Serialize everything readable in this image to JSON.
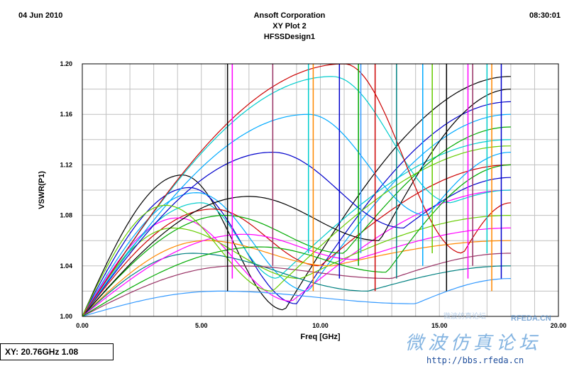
{
  "header": {
    "date": "04 Jun 2010",
    "time": "08:30:01",
    "company": "Ansoft Corporation",
    "plot_name": "XY Plot 2",
    "design": "HFSSDesign1"
  },
  "readout": "XY: 20.76GHz 1.08",
  "watermark": {
    "cn_top": "微波仿真论坛",
    "title": "微波仿真论坛",
    "logo": "RFEDA.CN",
    "url": "http://bbs.rfeda.cn"
  },
  "colors": {
    "series": [
      "#000000",
      "#0000cc",
      "#00aaff",
      "#00cccc",
      "#cc0000",
      "#ff00ff",
      "#00aa00",
      "#66cc00",
      "#ff8800",
      "#008080",
      "#993366",
      "#3399ff"
    ],
    "grid": "#c0c0c0"
  },
  "chart_data": {
    "type": "line",
    "title": "",
    "xlabel": "Freq [GHz]",
    "ylabel": "VSWR(P1)",
    "xlim": [
      0,
      20
    ],
    "ylim": [
      1.0,
      1.2
    ],
    "grid": true,
    "x_ticks": [
      "0.00",
      "5.00",
      "10.00",
      "15.00",
      "20.00"
    ],
    "y_ticks": [
      "1.00",
      "1.04",
      "1.08",
      "1.12",
      "1.16",
      "1.20"
    ],
    "x_range_data": [
      0,
      18
    ],
    "series_shape": "many parametric sweep curves starting at VSWR 1.00 at 0 GHz",
    "series": [
      {
        "peak_x": 4.2,
        "peak_y": 1.112,
        "dip_x": 8.5,
        "dip_y": 1.005,
        "end_y": 1.19
      },
      {
        "peak_x": 4.5,
        "peak_y": 1.102,
        "dip_x": 9.0,
        "dip_y": 1.01,
        "end_y": 1.17
      },
      {
        "peak_x": 4.8,
        "peak_y": 1.098,
        "dip_x": 9.5,
        "dip_y": 1.02,
        "end_y": 1.16
      },
      {
        "peak_x": 5.0,
        "peak_y": 1.09,
        "dip_x": 8.2,
        "dip_y": 1.03,
        "end_y": 1.14
      },
      {
        "peak_x": 5.5,
        "peak_y": 1.085,
        "dip_x": 10.0,
        "dip_y": 1.04,
        "end_y": 1.12
      },
      {
        "peak_x": 4.0,
        "peak_y": 1.078,
        "dip_x": 8.8,
        "dip_y": 1.012,
        "end_y": 1.1
      },
      {
        "peak_x": 6.0,
        "peak_y": 1.08,
        "dip_x": 11.0,
        "dip_y": 1.05,
        "end_y": 1.15
      },
      {
        "peak_x": 3.8,
        "peak_y": 1.07,
        "dip_x": 9.2,
        "dip_y": 1.03,
        "end_y": 1.08
      },
      {
        "peak_x": 5.2,
        "peak_y": 1.06,
        "dip_x": 10.5,
        "dip_y": 1.04,
        "end_y": 1.06
      },
      {
        "peak_x": 4.6,
        "peak_y": 1.05,
        "dip_x": 12.0,
        "dip_y": 1.02,
        "end_y": 1.04
      },
      {
        "peak_x": 6.5,
        "peak_y": 1.04,
        "dip_x": 13.0,
        "dip_y": 1.03,
        "end_y": 1.05
      },
      {
        "peak_x": 5.8,
        "peak_y": 1.02,
        "dip_x": 14.0,
        "dip_y": 1.01,
        "end_y": 1.03
      },
      {
        "peak_x": 7.0,
        "peak_y": 1.095,
        "dip_x": 12.5,
        "dip_y": 1.06,
        "end_y": 1.18
      },
      {
        "peak_x": 8.0,
        "peak_y": 1.13,
        "dip_x": 13.5,
        "dip_y": 1.07,
        "end_y": 1.11
      },
      {
        "peak_x": 9.5,
        "peak_y": 1.16,
        "dip_x": 14.5,
        "dip_y": 1.08,
        "end_y": 1.13
      },
      {
        "peak_x": 10.5,
        "peak_y": 1.19,
        "dip_x": 15.5,
        "dip_y": 1.09,
        "end_y": 1.1
      },
      {
        "peak_x": 11.0,
        "peak_y": 1.2,
        "dip_x": 16.0,
        "dip_y": 1.05,
        "end_y": 1.09
      },
      {
        "peak_x": 6.8,
        "peak_y": 1.065,
        "dip_x": 11.5,
        "dip_y": 1.045,
        "end_y": 1.07
      },
      {
        "peak_x": 7.5,
        "peak_y": 1.055,
        "dip_x": 12.8,
        "dip_y": 1.035,
        "end_y": 1.12
      },
      {
        "peak_x": 3.5,
        "peak_y": 1.088,
        "dip_x": 8.0,
        "dip_y": 1.02,
        "end_y": 1.135
      }
    ],
    "resonance_spikes_x": [
      6.1,
      6.3,
      8.0,
      9.5,
      9.7,
      10.8,
      11.6,
      11.7,
      12.3,
      13.2,
      14.3,
      14.7,
      15.3,
      16.2,
      16.4,
      17.0,
      17.2,
      17.6
    ]
  }
}
